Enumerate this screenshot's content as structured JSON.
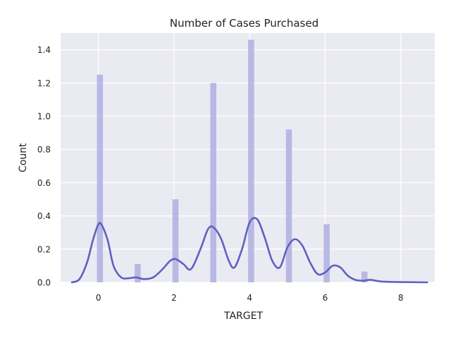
{
  "chart_data": {
    "type": "histogram",
    "title": "Number of Cases Purchased",
    "xlabel": "TARGET",
    "ylabel": "Count",
    "xlim": [
      -1,
      8.9
    ],
    "ylim": [
      0,
      1.5
    ],
    "x_ticks": [
      0,
      2,
      4,
      6,
      8
    ],
    "y_ticks": [
      0.0,
      0.2,
      0.4,
      0.6,
      0.8,
      1.0,
      1.2,
      1.4
    ],
    "x_tick_labels": [
      "0",
      "2",
      "4",
      "6",
      "8"
    ],
    "y_tick_labels": [
      "0.0",
      "0.2",
      "0.4",
      "0.6",
      "0.8",
      "1.0",
      "1.2",
      "1.4"
    ],
    "grid": true,
    "series": [
      {
        "name": "histogram",
        "kind": "bar",
        "bin_width": 0.16,
        "x": [
          0,
          1,
          2,
          3,
          4,
          5,
          6,
          7
        ],
        "values": [
          1.25,
          0.11,
          0.5,
          1.2,
          1.46,
          0.92,
          0.35,
          0.065
        ]
      },
      {
        "name": "kde",
        "kind": "line",
        "x": [
          -0.7,
          -0.5,
          -0.3,
          -0.15,
          0,
          0.1,
          0.25,
          0.4,
          0.6,
          0.8,
          1.0,
          1.2,
          1.45,
          1.7,
          1.9,
          2.05,
          2.25,
          2.45,
          2.7,
          2.9,
          3.05,
          3.25,
          3.45,
          3.6,
          3.8,
          4.0,
          4.2,
          4.4,
          4.6,
          4.8,
          5.0,
          5.2,
          5.4,
          5.6,
          5.8,
          6.0,
          6.2,
          6.4,
          6.6,
          6.8,
          7.0,
          7.2,
          7.5,
          8.0,
          8.7
        ],
        "values": [
          0.0,
          0.02,
          0.12,
          0.25,
          0.35,
          0.34,
          0.25,
          0.1,
          0.03,
          0.025,
          0.03,
          0.02,
          0.03,
          0.08,
          0.13,
          0.14,
          0.11,
          0.08,
          0.2,
          0.32,
          0.33,
          0.26,
          0.13,
          0.09,
          0.2,
          0.36,
          0.38,
          0.27,
          0.13,
          0.09,
          0.21,
          0.26,
          0.22,
          0.12,
          0.05,
          0.06,
          0.1,
          0.09,
          0.04,
          0.015,
          0.01,
          0.015,
          0.005,
          0.002,
          0.0
        ]
      }
    ],
    "colors": {
      "background": "#EAEAF2",
      "grid": "#FFFFFF",
      "bar": "#B3B3E2",
      "line": "#6060C0"
    }
  }
}
